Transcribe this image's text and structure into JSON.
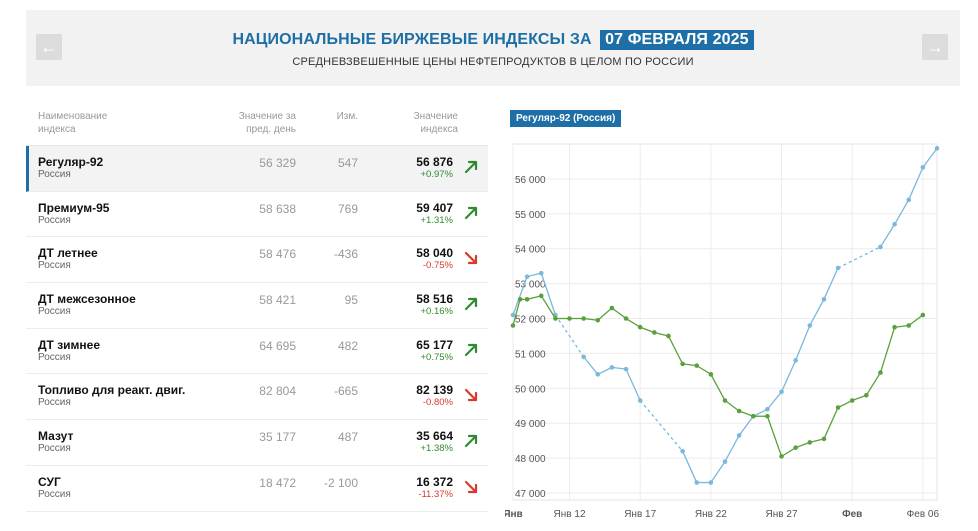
{
  "header": {
    "title": "НАЦИОНАЛЬНЫЕ БИРЖЕВЫЕ ИНДЕКСЫ ЗА",
    "date": "07 ФЕВРАЛЯ 2025",
    "subtitle": "СРЕДНЕВЗВЕШЕННЫЕ ЦЕНЫ НЕФТЕПРОДУКТОВ В ЦЕЛОМ ПО РОССИИ",
    "prev_icon": "arrow-left-icon",
    "next_icon": "arrow-right-icon"
  },
  "table": {
    "col_name": "Наименование индекса",
    "col_prev": "Значение за пред. день",
    "col_change": "Изм.",
    "col_value": "Значение индекса",
    "rows": [
      {
        "name": "Регуляр-92",
        "region": "Россия",
        "prev": "56 329",
        "change": "547",
        "value": "56 876",
        "pct": "+0.97%",
        "dir": "up"
      },
      {
        "name": "Премиум-95",
        "region": "Россия",
        "prev": "58 638",
        "change": "769",
        "value": "59 407",
        "pct": "+1.31%",
        "dir": "up"
      },
      {
        "name": "ДТ летнее",
        "region": "Россия",
        "prev": "58 476",
        "change": "-436",
        "value": "58 040",
        "pct": "-0.75%",
        "dir": "down"
      },
      {
        "name": "ДТ межсезонное",
        "region": "Россия",
        "prev": "58 421",
        "change": "95",
        "value": "58 516",
        "pct": "+0.16%",
        "dir": "up"
      },
      {
        "name": "ДТ зимнее",
        "region": "Россия",
        "prev": "64 695",
        "change": "482",
        "value": "65 177",
        "pct": "+0.75%",
        "dir": "up"
      },
      {
        "name": "Топливо для реакт. двиг.",
        "region": "Россия",
        "prev": "82 804",
        "change": "-665",
        "value": "82 139",
        "pct": "-0.80%",
        "dir": "down"
      },
      {
        "name": "Мазут",
        "region": "Россия",
        "prev": "35 177",
        "change": "487",
        "value": "35 664",
        "pct": "+1.38%",
        "dir": "up"
      },
      {
        "name": "СУГ",
        "region": "Россия",
        "prev": "18 472",
        "change": "-2 100",
        "value": "16 372",
        "pct": "-11.37%",
        "dir": "down"
      }
    ]
  },
  "colors": {
    "accent": "#1d6fa5",
    "up": "#2e8b2e",
    "down": "#d63a2a",
    "series_blue": "#7ab8dc",
    "series_green": "#5aa03c"
  },
  "chart_data": {
    "type": "line",
    "title": "Регуляр-92 (Россия)",
    "ylim": [
      46800,
      57000
    ],
    "yticks": [
      47000,
      48000,
      49000,
      50000,
      51000,
      52000,
      53000,
      54000,
      55000,
      56000
    ],
    "ytick_labels": [
      "47 000",
      "48 000",
      "49 000",
      "50 000",
      "51 000",
      "52 000",
      "53 000",
      "54 000",
      "55 000",
      "56 000"
    ],
    "xlim": [
      8,
      38
    ],
    "xticks": [
      {
        "x": 8,
        "label": "Янв",
        "bold": true
      },
      {
        "x": 12,
        "label": "Янв 12",
        "bold": false
      },
      {
        "x": 17,
        "label": "Янв 17",
        "bold": false
      },
      {
        "x": 22,
        "label": "Янв 22",
        "bold": false
      },
      {
        "x": 27,
        "label": "Янв 27",
        "bold": false
      },
      {
        "x": 32,
        "label": "Фев",
        "bold": true
      },
      {
        "x": 37,
        "label": "Фев 06",
        "bold": false
      }
    ],
    "grid": true,
    "series": [
      {
        "color": "blue",
        "points": [
          [
            8,
            52100
          ],
          [
            9,
            53200
          ],
          [
            10,
            53300
          ],
          [
            11,
            52100
          ],
          [
            13,
            50900
          ],
          [
            14,
            50400
          ],
          [
            15,
            50600
          ],
          [
            16,
            50550
          ],
          [
            17,
            49650
          ],
          [
            20,
            48200
          ],
          [
            21,
            47300
          ],
          [
            22,
            47300
          ],
          [
            23,
            47900
          ],
          [
            24,
            48650
          ],
          [
            25,
            49200
          ],
          [
            26,
            49400
          ],
          [
            27,
            49900
          ],
          [
            28,
            50800
          ],
          [
            29,
            51800
          ],
          [
            30,
            52550
          ],
          [
            31,
            53450
          ],
          [
            34,
            54050
          ],
          [
            35,
            54700
          ],
          [
            36,
            55400
          ],
          [
            37,
            56329
          ],
          [
            38,
            56876
          ]
        ]
      },
      {
        "color": "green",
        "points": [
          [
            8,
            51800
          ],
          [
            8.5,
            52550
          ],
          [
            9,
            52550
          ],
          [
            10,
            52650
          ],
          [
            11,
            52000
          ],
          [
            12,
            52000
          ],
          [
            13,
            52000
          ],
          [
            14,
            51950
          ],
          [
            15,
            52300
          ],
          [
            16,
            52000
          ],
          [
            17,
            51750
          ],
          [
            18,
            51600
          ],
          [
            19,
            51500
          ],
          [
            20,
            50700
          ],
          [
            21,
            50650
          ],
          [
            22,
            50400
          ],
          [
            23,
            49650
          ],
          [
            24,
            49350
          ],
          [
            25,
            49200
          ],
          [
            26,
            49200
          ],
          [
            27,
            48050
          ],
          [
            28,
            48300
          ],
          [
            29,
            48450
          ],
          [
            30,
            48550
          ],
          [
            31,
            49450
          ],
          [
            32,
            49650
          ],
          [
            33,
            49800
          ],
          [
            34,
            50450
          ],
          [
            35,
            51750
          ],
          [
            36,
            51800
          ],
          [
            37,
            52100
          ]
        ]
      }
    ]
  }
}
